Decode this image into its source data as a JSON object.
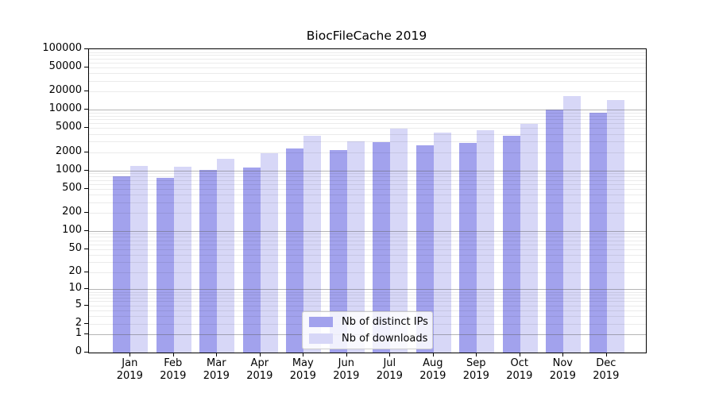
{
  "title": "BiocFileCache 2019",
  "chart_data": {
    "type": "bar",
    "title": "BiocFileCache 2019",
    "xlabel": "",
    "ylabel": "",
    "year": "2019",
    "categories": [
      "Jan",
      "Feb",
      "Mar",
      "Apr",
      "May",
      "Jun",
      "Jul",
      "Aug",
      "Sep",
      "Oct",
      "Nov",
      "Dec"
    ],
    "series": [
      {
        "name": "Nb of distinct IPs",
        "color": "#a2a2ed",
        "values": [
          795,
          760,
          1010,
          1110,
          2340,
          2190,
          2920,
          2610,
          2880,
          3710,
          10100,
          9080
        ]
      },
      {
        "name": "Nb of downloads",
        "color": "#d7d7f7",
        "values": [
          1190,
          1160,
          1580,
          1910,
          3720,
          3050,
          4900,
          4180,
          4630,
          5960,
          17100,
          14400
        ]
      }
    ],
    "yscale": "log1p",
    "ylim": [
      0,
      100000
    ],
    "yticks": [
      0,
      1,
      2,
      5,
      10,
      20,
      50,
      100,
      200,
      500,
      1000,
      2000,
      5000,
      10000,
      20000,
      50000,
      100000
    ],
    "grid": "horizontal major and minor log lines, drawn over bars",
    "legend_position": "lower center"
  },
  "legend": {
    "items": [
      {
        "label": "Nb of distinct IPs",
        "color": "#a2a2ed"
      },
      {
        "label": "Nb of downloads",
        "color": "#d7d7f7"
      }
    ]
  },
  "colors": {
    "distinct_ips": "#a2a2ed",
    "downloads": "#d7d7f7",
    "axis": "#000000",
    "background": "#ffffff"
  }
}
